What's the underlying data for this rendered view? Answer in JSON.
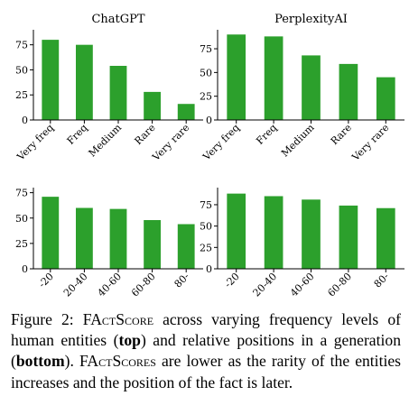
{
  "colors": {
    "bar": "#2ca02c",
    "axis": "#000000"
  },
  "chart_data": [
    {
      "type": "bar",
      "title": "ChatGPT",
      "categories": [
        "Very freq",
        "Freq",
        "Medium",
        "Rare",
        "Very rare"
      ],
      "values": [
        80,
        75,
        54,
        28,
        16
      ],
      "ylim": [
        0,
        90
      ],
      "yticks": [
        0,
        25,
        50,
        75
      ],
      "xlabel": "",
      "ylabel": "",
      "grid": false
    },
    {
      "type": "bar",
      "title": "PerplexityAI",
      "categories": [
        "Very freq",
        "Freq",
        "Medium",
        "Rare",
        "Very rare"
      ],
      "values": [
        90,
        88,
        68,
        59,
        45
      ],
      "ylim": [
        0,
        95
      ],
      "yticks": [
        0,
        25,
        50,
        75
      ],
      "xlabel": "",
      "ylabel": "",
      "grid": false
    },
    {
      "type": "bar",
      "title": "",
      "categories": [
        "-20",
        "20-40",
        "40-60",
        "60-80",
        "80-"
      ],
      "values": [
        71,
        60,
        59,
        48,
        44
      ],
      "ylim": [
        0,
        80
      ],
      "yticks": [
        0,
        25,
        50,
        75
      ],
      "xlabel": "",
      "ylabel": "",
      "grid": false
    },
    {
      "type": "bar",
      "title": "",
      "categories": [
        "-20",
        "20-40",
        "40-60",
        "60-80",
        "80-"
      ],
      "values": [
        88,
        85,
        81,
        74,
        71
      ],
      "ylim": [
        0,
        95
      ],
      "yticks": [
        0,
        25,
        50,
        75
      ],
      "xlabel": "",
      "ylabel": "",
      "grid": false
    }
  ],
  "caption": {
    "label": "Figure 2:",
    "factscore": "FActScore",
    "part1": "across varying frequency levels of human entities (",
    "top": "top",
    "part2": ") and relative positions in a generation (",
    "bottom": "bottom",
    "part3": "). ",
    "factscores": "FActScores",
    "part4": "are lower as the rarity of the entities increases and the position of the fact is later."
  }
}
